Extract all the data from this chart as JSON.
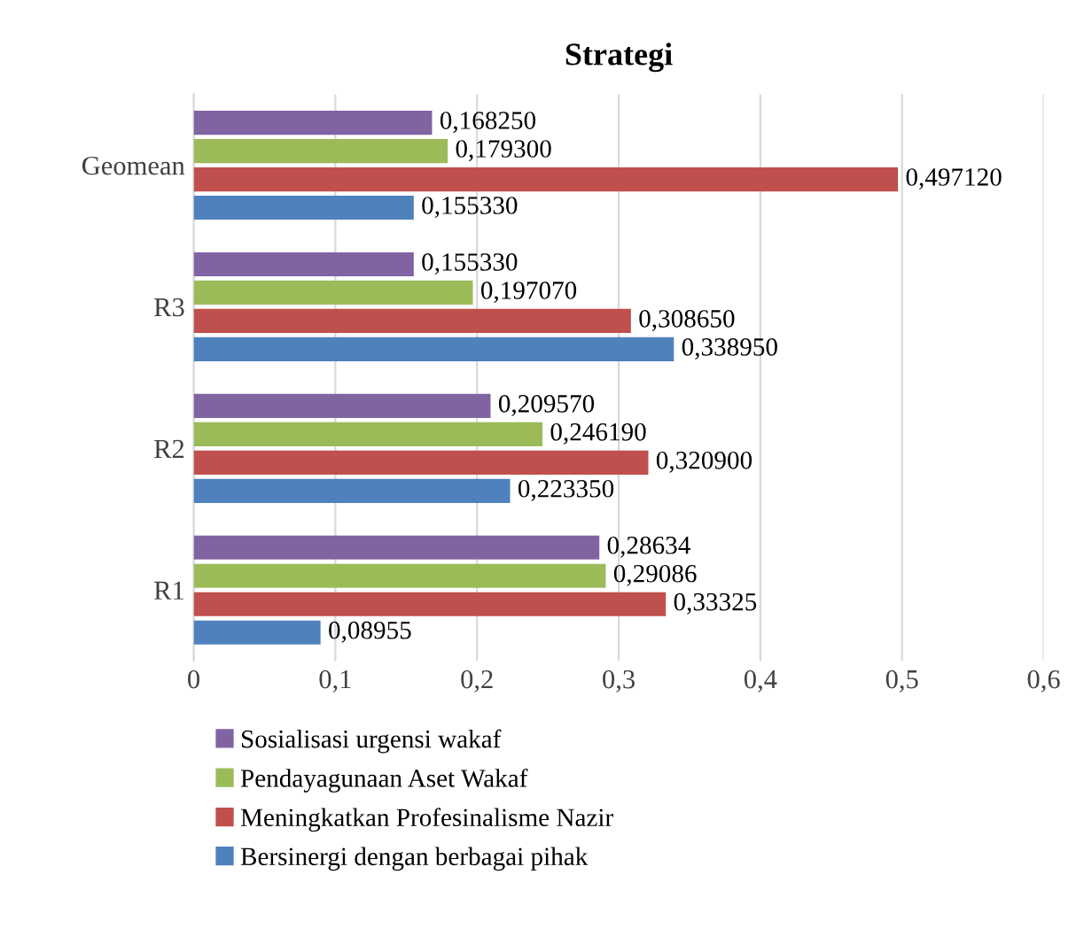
{
  "chart_data": {
    "type": "bar",
    "orientation": "horizontal",
    "title": "Strategi",
    "categories": [
      "Geomean",
      "R3",
      "R2",
      "R1"
    ],
    "series": [
      {
        "name": "Sosialisasi urgensi wakaf",
        "color": "#8064a2",
        "values": [
          0.16825,
          0.15533,
          0.20957,
          0.28634
        ],
        "value_labels": [
          "0,168250",
          "0,155330",
          "0,209570",
          "0,28634"
        ]
      },
      {
        "name": "Pendayagunaan Aset Wakaf",
        "color": "#9bbb59",
        "values": [
          0.1793,
          0.19707,
          0.24619,
          0.29086
        ],
        "value_labels": [
          "0,179300",
          "0,197070",
          "0,246190",
          "0,29086"
        ]
      },
      {
        "name": "Meningkatkan Profesinalisme Nazir",
        "color": "#c0504d",
        "values": [
          0.49712,
          0.30865,
          0.3209,
          0.33325
        ],
        "value_labels": [
          "0,497120",
          "0,308650",
          "0,320900",
          "0,33325"
        ]
      },
      {
        "name": "Bersinergi dengan berbagai pihak",
        "color": "#4f81bd",
        "values": [
          0.15533,
          0.33895,
          0.22335,
          0.08955
        ],
        "value_labels": [
          "0,155330",
          "0,338950",
          "0,223350",
          "0,08955"
        ]
      }
    ],
    "xlim": [
      0,
      0.6
    ],
    "xticks": [
      0,
      {
        "value": 0.1,
        "label": "0,1"
      },
      {
        "value": 0.2,
        "label": "0,2"
      },
      {
        "value": 0.3,
        "label": "0,3"
      },
      {
        "value": 0.4,
        "label": "0,4"
      },
      {
        "value": 0.5,
        "label": "0,5"
      },
      {
        "value": 0.6,
        "label": "0,6"
      }
    ],
    "grid": "x",
    "legend": "bottom"
  }
}
